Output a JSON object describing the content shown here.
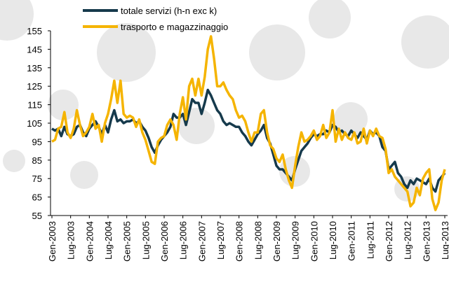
{
  "chart_data": {
    "type": "line",
    "categories": [
      "Gen-2003",
      null,
      null,
      null,
      null,
      null,
      "Lug-2003",
      null,
      null,
      null,
      null,
      null,
      "Gen-2004",
      null,
      null,
      null,
      null,
      null,
      "Lug-2004",
      null,
      null,
      null,
      null,
      null,
      "Gen-2005",
      null,
      null,
      null,
      null,
      null,
      "Lug-2005",
      null,
      null,
      null,
      null,
      null,
      "Gen-2006",
      null,
      null,
      null,
      null,
      null,
      "Lug-2006",
      null,
      null,
      null,
      null,
      null,
      "Gen-2007",
      null,
      null,
      null,
      null,
      null,
      "Lug-2007",
      null,
      null,
      null,
      null,
      null,
      "Gen-2008",
      null,
      null,
      null,
      null,
      null,
      "Lug-2008",
      null,
      null,
      null,
      null,
      null,
      "Gen-2009",
      null,
      null,
      null,
      null,
      null,
      "Lug-2009",
      null,
      null,
      null,
      null,
      null,
      "Gen-2010",
      null,
      null,
      null,
      null,
      null,
      "Lug-2010",
      null,
      null,
      null,
      null,
      null,
      "Gen-2011",
      null,
      null,
      null,
      null,
      null,
      "Lug-2011",
      null,
      null,
      null,
      null,
      null,
      "Gen-2012",
      null,
      null,
      null,
      null,
      null,
      "Lug-2012",
      null,
      null,
      null,
      null,
      null,
      "Gen-2013",
      null,
      null,
      null,
      null,
      null,
      "Lug-2013"
    ],
    "series": [
      {
        "name": "totale servizi (h-n exc k)",
        "color": "#163a4c",
        "values": [
          102,
          101,
          102,
          98,
          103,
          99,
          98,
          99,
          103,
          104,
          100,
          98,
          102,
          104,
          106,
          103,
          99,
          104,
          100,
          107,
          112,
          106,
          107,
          105,
          106,
          106,
          107,
          105,
          106,
          103,
          101,
          97,
          92,
          89,
          93,
          96,
          98,
          100,
          103,
          110,
          108,
          108,
          110,
          104,
          111,
          118,
          116,
          116,
          110,
          116,
          123,
          120,
          116,
          112,
          110,
          106,
          104,
          105,
          104,
          103,
          103,
          100,
          98,
          95,
          93,
          96,
          99,
          101,
          104,
          97,
          94,
          88,
          82,
          80,
          80,
          78,
          76,
          74,
          80,
          85,
          90,
          92,
          94,
          97,
          99,
          98,
          99,
          99,
          101,
          100,
          104,
          103,
          100,
          101,
          99,
          98,
          101,
          99,
          97,
          100,
          98,
          96,
          101,
          99,
          100,
          98,
          92,
          90,
          80,
          82,
          84,
          78,
          76,
          72,
          70,
          74,
          72,
          75,
          74,
          73,
          72,
          75,
          70,
          68,
          74,
          76,
          78
        ]
      },
      {
        "name": "trasporto e magazzinaggio",
        "color": "#f5b400",
        "values": [
          95,
          96,
          102,
          103,
          111,
          100,
          97,
          102,
          112,
          104,
          98,
          100,
          103,
          110,
          102,
          104,
          95,
          105,
          110,
          118,
          128,
          116,
          128,
          110,
          108,
          109,
          108,
          103,
          107,
          100,
          96,
          90,
          84,
          83,
          95,
          97,
          98,
          104,
          107,
          104,
          96,
          110,
          119,
          107,
          125,
          129,
          120,
          129,
          120,
          130,
          145,
          152,
          140,
          125,
          125,
          127,
          123,
          120,
          118,
          112,
          108,
          109,
          106,
          100,
          95,
          100,
          100,
          110,
          112,
          100,
          93,
          91,
          86,
          84,
          88,
          80,
          74,
          70,
          82,
          92,
          100,
          95,
          96,
          98,
          101,
          96,
          98,
          104,
          97,
          100,
          112,
          95,
          102,
          96,
          100,
          97,
          96,
          100,
          94,
          95,
          102,
          94,
          101,
          98,
          102,
          98,
          97,
          91,
          78,
          80,
          76,
          74,
          72,
          70,
          68,
          60,
          62,
          70,
          66,
          75,
          78,
          80,
          64,
          58,
          62,
          74,
          80
        ]
      }
    ],
    "ylim": [
      55,
      155
    ],
    "yticks": [
      55,
      65,
      75,
      85,
      95,
      105,
      115,
      125,
      135,
      145,
      155
    ]
  }
}
